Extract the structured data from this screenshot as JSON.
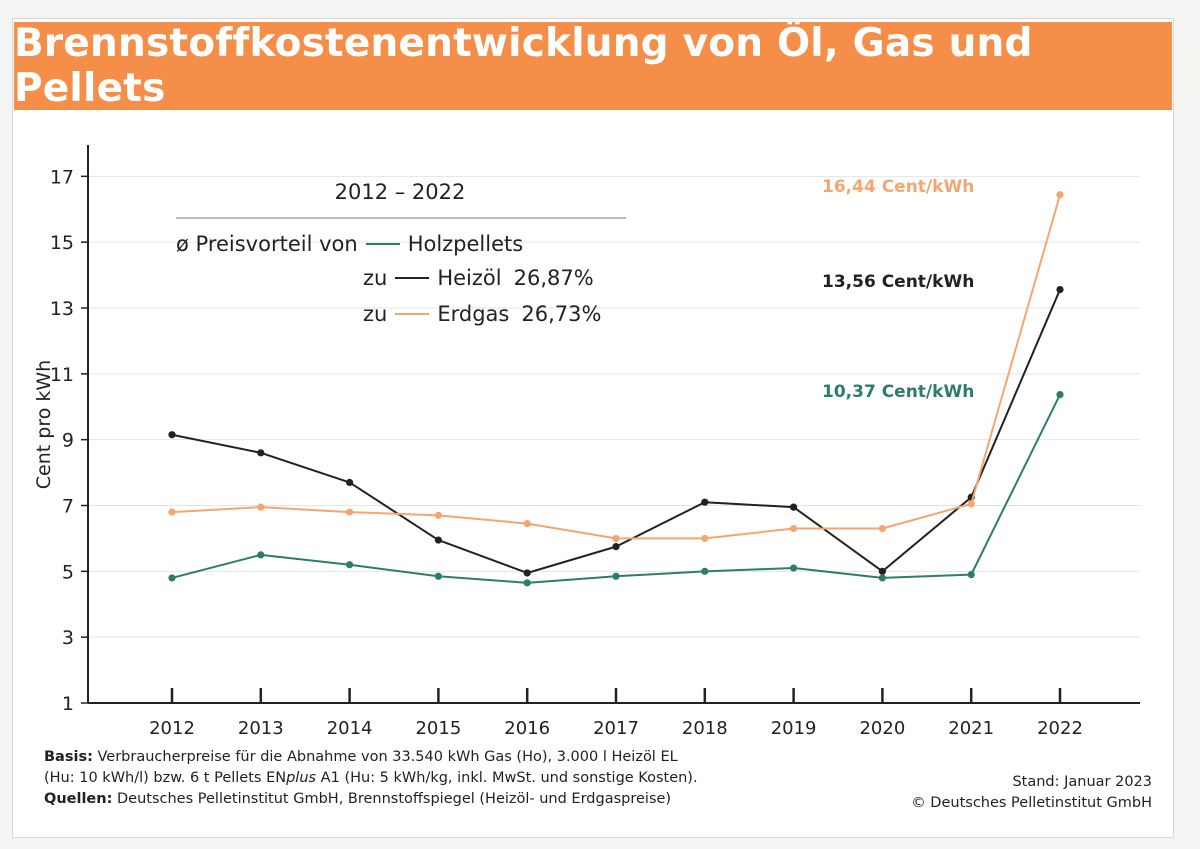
{
  "title": "Brennstoffkostenentwicklung von Öl, Gas und Pellets",
  "legend": {
    "period": "2012 – 2022",
    "prefix": "ø Preisvorteil von",
    "base_series": "Holzpellets",
    "rows": [
      {
        "prefix": "zu",
        "series": "Heizöl",
        "value": "26,87%"
      },
      {
        "prefix": "zu",
        "series": "Erdgas",
        "value": "26,73%"
      }
    ]
  },
  "end_labels": {
    "gas": "16,44 Cent/kWh",
    "oil": "13,56 Cent/kWh",
    "pellets": "10,37 Cent/kWh"
  },
  "colors": {
    "title_bar": "#f48e48",
    "pellets": "#2e7d68",
    "oil": "#222222",
    "gas": "#f3a66f"
  },
  "footer": {
    "basis_label": "Basis:",
    "basis_text_1": "Verbraucherpreise für die Abnahme von 33.540 kWh Gas (Ho), 3.000 l Heizöl EL",
    "basis_text_2a": "(Hu: 10 kWh/l) bzw. 6 t Pellets EN",
    "basis_text_2b": "plus",
    "basis_text_2c": " A1 (Hu: 5 kWh/kg, inkl. MwSt. und sonstige Kosten).",
    "sources_label": "Quellen:",
    "sources_text": "Deutsches Pelletinstitut GmbH, Brennstoffspiegel (Heizöl- und Erdgaspreise)",
    "stand": "Stand: Januar 2023",
    "copyright": "© Deutsches Pelletinstitut GmbH"
  },
  "chart_data": {
    "type": "line",
    "title": "Brennstoffkostenentwicklung von Öl, Gas und Pellets",
    "xlabel": "",
    "ylabel": "Cent pro kWh",
    "x": [
      "2012",
      "2013",
      "2014",
      "2015",
      "2016",
      "2017",
      "2018",
      "2019",
      "2020",
      "2021",
      "2022"
    ],
    "yticks": [
      1,
      3,
      5,
      7,
      9,
      11,
      13,
      15,
      17
    ],
    "ylim": [
      1,
      17.8
    ],
    "grid": true,
    "series": [
      {
        "name": "Heizöl",
        "color": "#222222",
        "values": [
          9.15,
          8.6,
          7.7,
          5.95,
          4.95,
          5.75,
          7.1,
          6.95,
          5.0,
          7.25,
          13.56
        ]
      },
      {
        "name": "Erdgas",
        "color": "#f3a66f",
        "values": [
          6.8,
          6.95,
          6.8,
          6.7,
          6.45,
          6.0,
          6.0,
          6.3,
          6.3,
          7.05,
          16.44
        ]
      },
      {
        "name": "Holzpellets",
        "color": "#2e7d68",
        "values": [
          4.8,
          5.5,
          5.2,
          4.85,
          4.65,
          4.85,
          5.0,
          5.1,
          4.8,
          4.9,
          10.37
        ]
      }
    ]
  }
}
